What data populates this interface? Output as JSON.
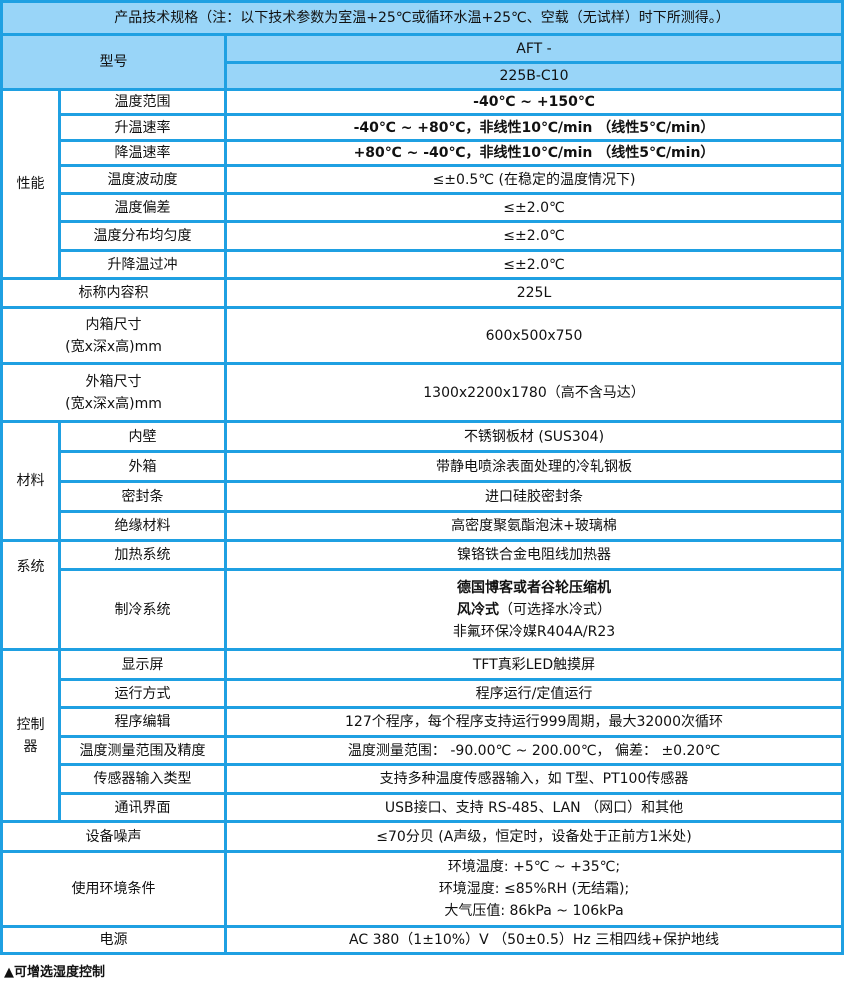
{
  "title": "产品技术规格（注：以下技术参数为室温+25℃或循环水温+25℃、空载（无试样）时下所测得。）",
  "model": {
    "label": "型号",
    "line1": "AFT -",
    "line2": "225B-C10"
  },
  "performance": {
    "group": "性能",
    "rows": [
      {
        "label": "温度范围",
        "value": "-40℃ ~ +150℃"
      },
      {
        "label": "升温速率",
        "value": "-40℃ ~ +80℃，非线性10℃/min （线性5℃/min）"
      },
      {
        "label": "降温速率",
        "value": "+80℃ ~ -40℃，非线性10℃/min （线性5℃/min）"
      },
      {
        "label": "温度波动度",
        "value": "≤±0.5℃ (在稳定的温度情况下)"
      },
      {
        "label": "温度偏差",
        "value": "≤±2.0℃"
      },
      {
        "label": "温度分布均匀度",
        "value": "≤±2.0℃"
      },
      {
        "label": "升降温过冲",
        "value": "≤±2.0℃"
      }
    ]
  },
  "volume": {
    "label": "标称内容积",
    "value": "225L"
  },
  "inner": {
    "label1": "内箱尺寸",
    "label2": "(宽x深x高)mm",
    "value": "600x500x750"
  },
  "outer": {
    "label1": "外箱尺寸",
    "label2": "(宽x深x高)mm",
    "value": "1300x2200x1780（高不含马达）"
  },
  "material": {
    "group": "材料",
    "rows": [
      {
        "label": "内壁",
        "value": "不锈钢板材 (SUS304)"
      },
      {
        "label": "外箱",
        "value": "带静电喷涂表面处理的冷轧钢板"
      },
      {
        "label": "密封条",
        "value": "进口硅胶密封条"
      },
      {
        "label": "绝缘材料",
        "value": "高密度聚氨酯泡沫+玻璃棉"
      }
    ]
  },
  "system": {
    "group": "系统",
    "heating": {
      "label": "加热系统",
      "value": "镍铬铁合金电阻线加热器"
    },
    "cooling": {
      "label": "制冷系统",
      "line1": "德国博客或者谷轮压缩机",
      "line2_bold": "风冷式",
      "line2_rest": "（可选择水冷式）",
      "line3": "非氟环保冷媒R404A/R23"
    }
  },
  "controller": {
    "group1": "控制",
    "group2": "器",
    "rows": [
      {
        "label": "显示屏",
        "value": "TFT真彩LED触摸屏"
      },
      {
        "label": "运行方式",
        "value": "程序运行/定值运行"
      },
      {
        "label": "程序编辑",
        "value": "127个程序，每个程序支持运行999周期，最大32000次循环"
      },
      {
        "label": "温度测量范围及精度",
        "value": "温度测量范围： -90.00℃ ~ 200.00℃， 偏差： ±0.20℃"
      },
      {
        "label": "传感器输入类型",
        "value": "支持多种温度传感器输入，如 T型、PT100传感器"
      },
      {
        "label": "通讯界面",
        "value": "USB接口、支持 RS-485、LAN （网口）和其他"
      }
    ]
  },
  "noise": {
    "label": "设备噪声",
    "value": "≤70分贝 (A声级，恒定时，设备处于正前方1米处)"
  },
  "environment": {
    "label": "使用环境条件",
    "line1": "环境温度: +5℃ ~ +35℃;",
    "line2": "环境湿度: ≤85%RH (无结霜);",
    "line3": "大气压值: 86kPa ~ 106kPa"
  },
  "power": {
    "label": "电源",
    "value": "AC 380（1±10%）V （50±0.5）Hz 三相四线+保护地线"
  },
  "footnote": "▲可增选湿度控制"
}
